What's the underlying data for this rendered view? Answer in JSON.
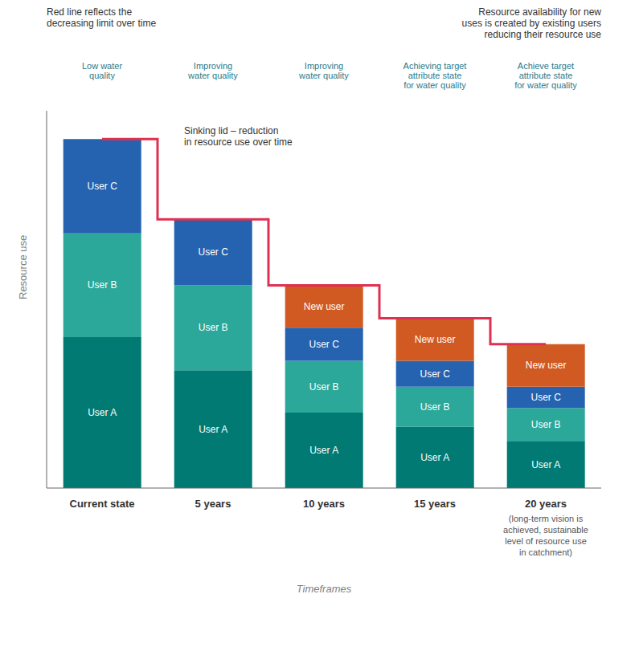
{
  "chart_data": {
    "type": "bar",
    "stacked": true,
    "categories": [
      "Current state",
      "5 years",
      "10 years",
      "15 years",
      "20 years"
    ],
    "series": [
      {
        "name": "User A",
        "color": "#007A73",
        "values": [
          3.2,
          2.5,
          1.6,
          1.3,
          1.0
        ]
      },
      {
        "name": "User B",
        "color": "#2BA89A",
        "values": [
          2.2,
          1.8,
          1.1,
          0.85,
          0.7
        ]
      },
      {
        "name": "User C",
        "color": "#2563B0",
        "values": [
          2.0,
          1.4,
          0.7,
          0.55,
          0.45
        ]
      },
      {
        "name": "New user",
        "color": "#D05A22",
        "values": [
          null,
          null,
          0.9,
          0.9,
          0.9
        ]
      },
      {
        "type": "line",
        "line_style": "step",
        "color": "#E03050",
        "values": [
          7.4,
          5.7,
          4.3,
          3.6,
          3.05
        ]
      }
    ],
    "xlabel": "Timeframes",
    "ylabel": "Resource use",
    "ylim": [
      0,
      8
    ],
    "tick_labels": "x",
    "annotations": [
      {
        "text": "Low water\nquality",
        "x": "Current state"
      },
      {
        "text": "Improving\nwater quality",
        "x": "5 years"
      },
      {
        "text": "Improving\nwater quality",
        "x": "10 years"
      },
      {
        "text": "Achieving target\nattribute state\nfor water quality",
        "x": "15 years"
      },
      {
        "text": "Achieve target\nattribute state\nfor water quality",
        "x": "20 years"
      },
      {
        "text": "(long-term vision is\nachieved, sustainable\nlevel of resource use\nin catchment)",
        "x": "20 years"
      },
      {
        "text": "Red line reflects the\ndecreasing limit over time"
      },
      {
        "text": "Resource availability for new\nuses is created by existing users\nreducing their resource use"
      },
      {
        "text": "Sinking lid – reduction\nin resource use over time"
      }
    ]
  }
}
